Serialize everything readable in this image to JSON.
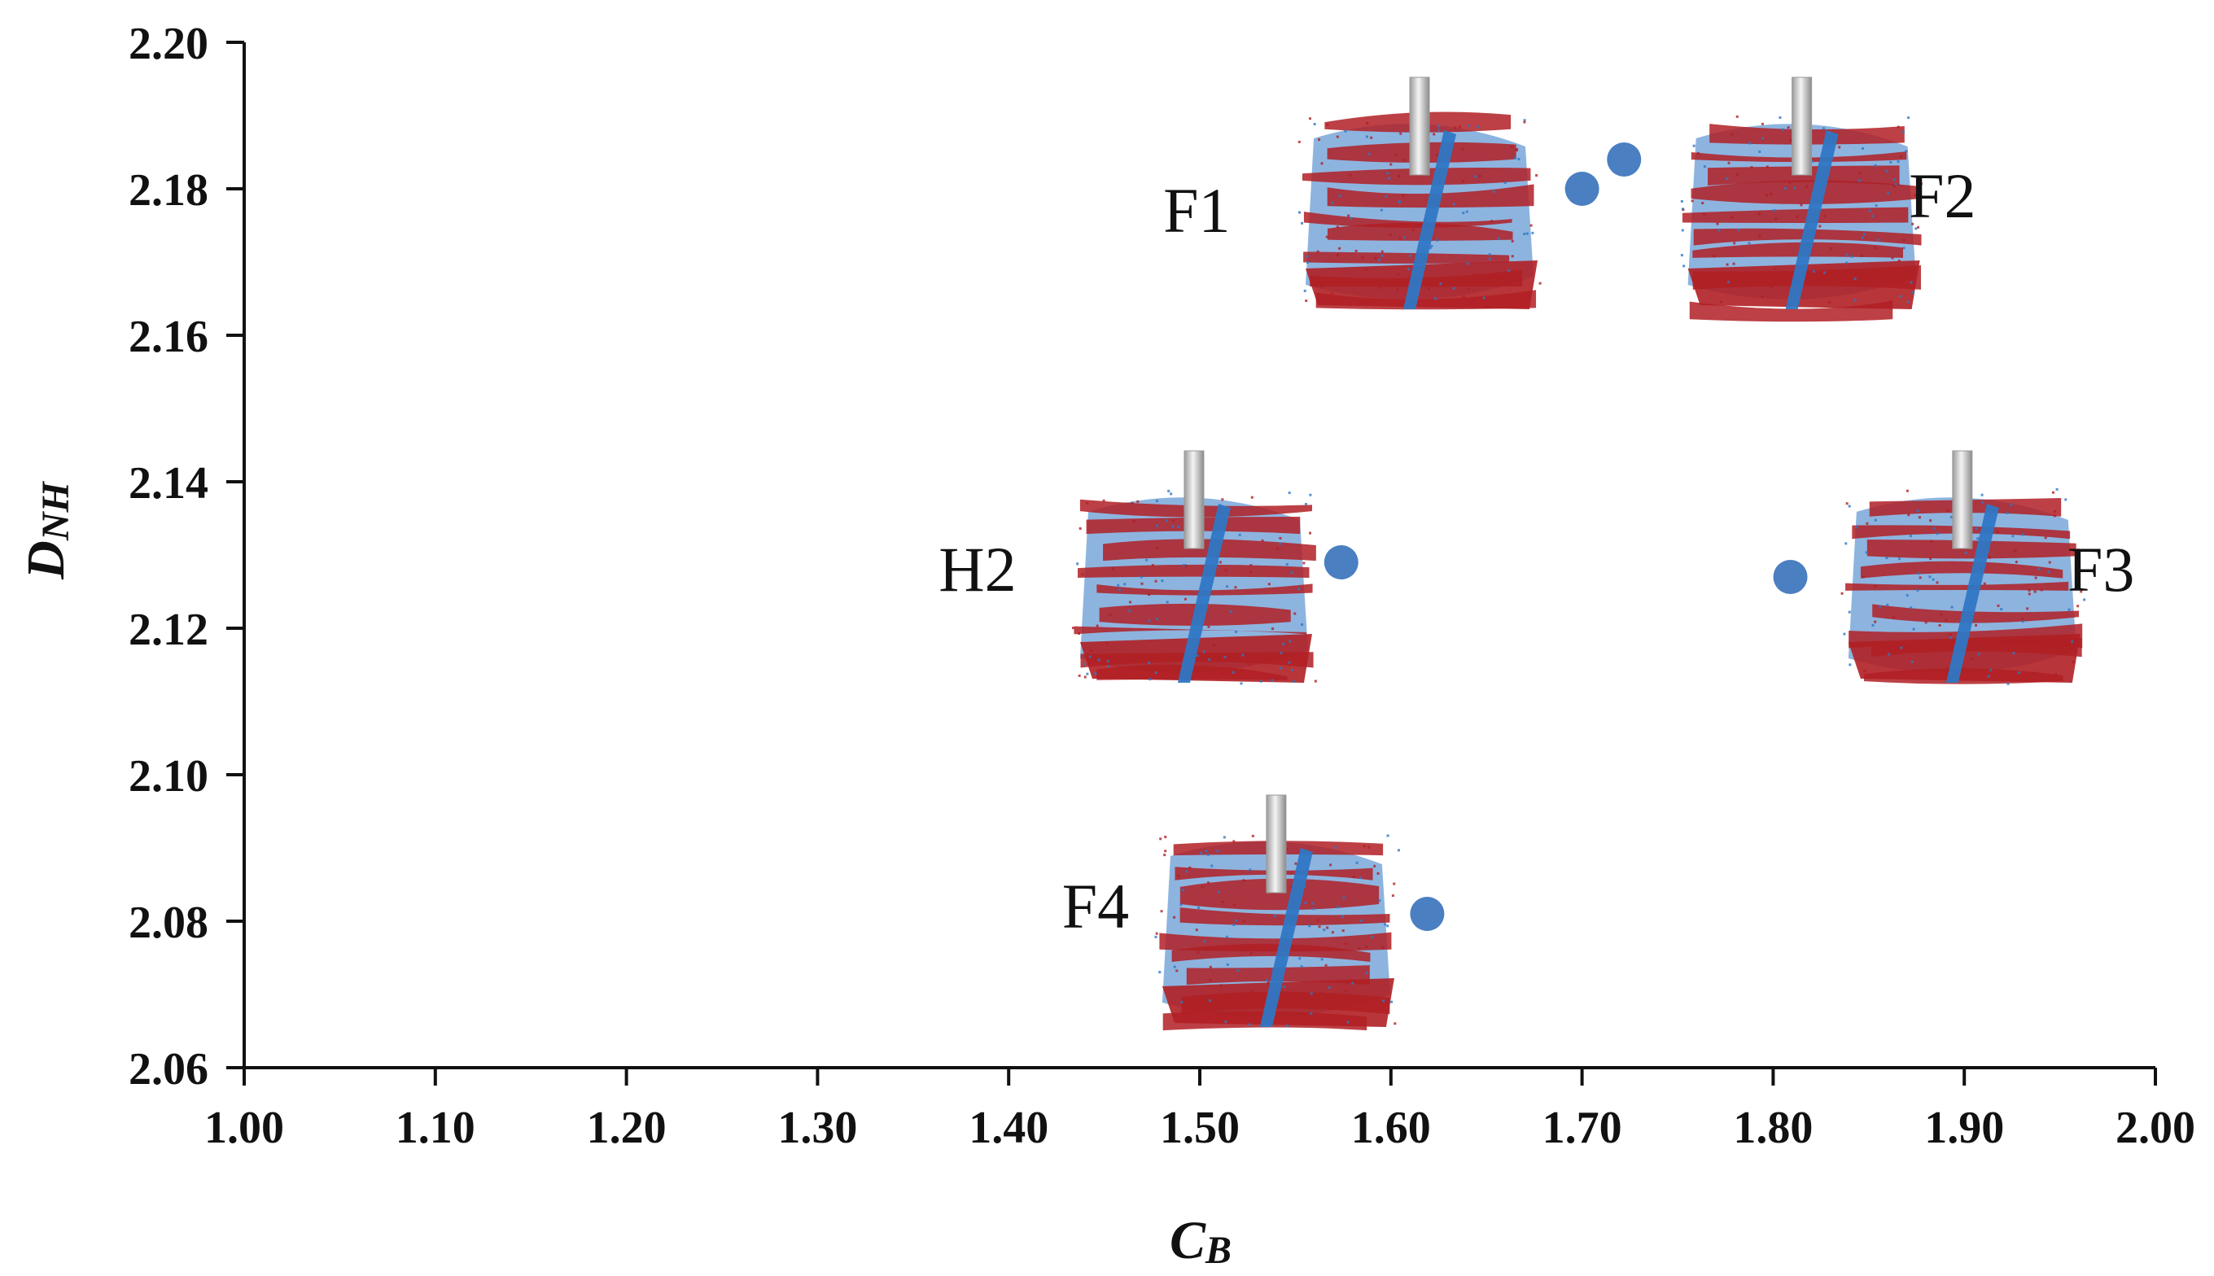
{
  "chart_data": {
    "type": "scatter",
    "xlim": [
      1.0,
      2.0
    ],
    "ylim": [
      2.06,
      2.2
    ],
    "x_ticks": [
      "1.00",
      "1.10",
      "1.20",
      "1.30",
      "1.40",
      "1.50",
      "1.60",
      "1.70",
      "1.80",
      "1.90",
      "2.00"
    ],
    "y_ticks": [
      "2.06",
      "2.08",
      "2.10",
      "2.12",
      "2.14",
      "2.16",
      "2.18",
      "2.20"
    ],
    "xlabel": {
      "main": "C",
      "sub": "B"
    },
    "ylabel": {
      "main": "D",
      "sub": "NH"
    },
    "grid": false,
    "point_color": "#4a7fc1",
    "points": [
      {
        "x": 1.7,
        "y": 2.18
      },
      {
        "x": 1.722,
        "y": 2.184
      },
      {
        "x": 1.574,
        "y": 2.129
      },
      {
        "x": 1.809,
        "y": 2.127
      },
      {
        "x": 1.619,
        "y": 2.081
      }
    ],
    "annotations": [
      {
        "label": "F1",
        "x": 1.615,
        "y": 2.178,
        "anchor_x": 1.516,
        "anchor_y": 2.177,
        "side": "left"
      },
      {
        "label": "F2",
        "x": 1.815,
        "y": 2.178,
        "anchor_x": 1.871,
        "anchor_y": 2.179,
        "side": "right"
      },
      {
        "label": "H2",
        "x": 1.497,
        "y": 2.127,
        "anchor_x": 1.404,
        "anchor_y": 2.128,
        "side": "left"
      },
      {
        "label": "F3",
        "x": 1.899,
        "y": 2.127,
        "anchor_x": 1.954,
        "anchor_y": 2.128,
        "side": "right"
      },
      {
        "label": "F4",
        "x": 1.54,
        "y": 2.08,
        "anchor_x": 1.463,
        "anchor_y": 2.082,
        "side": "left"
      }
    ],
    "colors": {
      "red": "#b01f24",
      "blue": "#2f77c4",
      "rod": "#cfcfcf"
    }
  }
}
